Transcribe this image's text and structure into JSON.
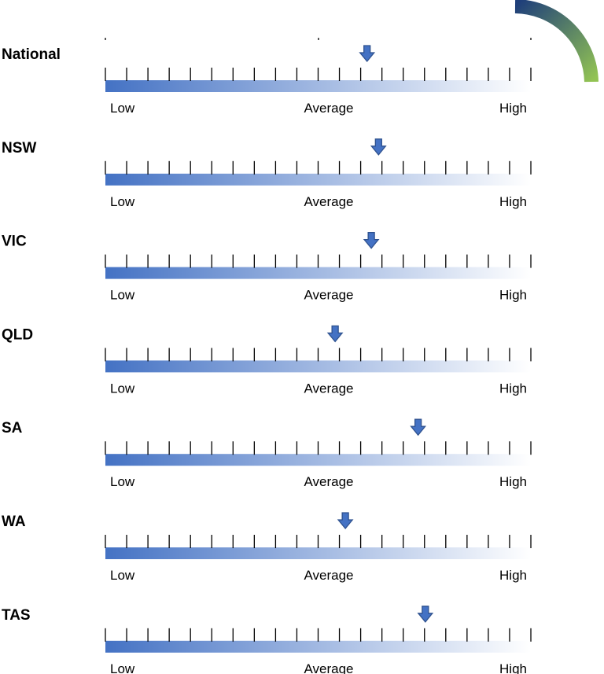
{
  "chart_data": {
    "type": "gauge-scale",
    "scale_labels": {
      "low": "Low",
      "average": "Average",
      "high": "High"
    },
    "scale_range": [
      0,
      100
    ],
    "tick_count": 21,
    "colors": {
      "bar_dark": "#4472c4",
      "bar_light": "#ffffff",
      "marker_fill": "#4472c4",
      "marker_stroke": "#2f528f",
      "tick": "#000000",
      "corner_arc_start": "#1f3f7a",
      "corner_arc_end": "#92c353"
    },
    "regions": [
      {
        "name": "National",
        "value": 61.5
      },
      {
        "name": "NSW",
        "value": 64.2
      },
      {
        "name": "VIC",
        "value": 62.5
      },
      {
        "name": "QLD",
        "value": 54.0
      },
      {
        "name": "SA",
        "value": 73.5
      },
      {
        "name": "WA",
        "value": 56.4
      },
      {
        "name": "TAS",
        "value": 75.2
      }
    ]
  }
}
